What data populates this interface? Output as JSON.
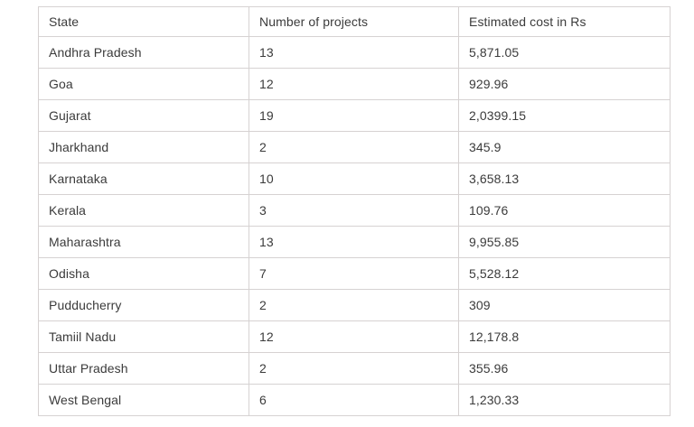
{
  "chart_data": {
    "type": "table",
    "columns": [
      "State",
      "Number of projects",
      "Estimated cost in Rs"
    ],
    "rows": [
      [
        "Andhra Pradesh",
        "13",
        "5,871.05"
      ],
      [
        "Goa",
        "12",
        "929.96"
      ],
      [
        "Gujarat",
        "19",
        "2,0399.15"
      ],
      [
        "Jharkhand",
        "2",
        "345.9"
      ],
      [
        "Karnataka",
        "10",
        "3,658.13"
      ],
      [
        "Kerala",
        "3",
        "109.76"
      ],
      [
        "Maharashtra",
        "13",
        "9,955.85"
      ],
      [
        "Odisha",
        "7",
        "5,528.12"
      ],
      [
        "Pudducherry",
        "2",
        "309"
      ],
      [
        "Tamiil Nadu",
        "12",
        "12,178.8"
      ],
      [
        "Uttar Pradesh",
        "2",
        "355.96"
      ],
      [
        "West Bengal",
        "6",
        "1,230.33"
      ]
    ],
    "title": "",
    "layout": {
      "grid": "all-borders",
      "border_color": "#d6d2d2",
      "text_color": "#3b3b3b",
      "background_color": "#ffffff"
    }
  }
}
